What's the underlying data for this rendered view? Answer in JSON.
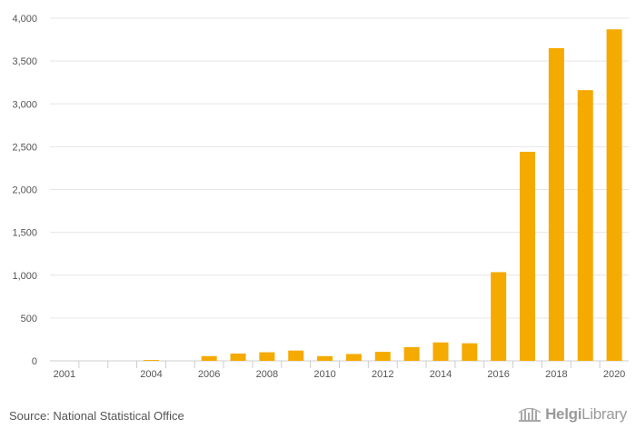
{
  "chart_data": {
    "type": "bar",
    "title": "",
    "xlabel": "",
    "ylabel": "",
    "ylim": [
      0,
      4000
    ],
    "yticks": [
      0,
      500,
      1000,
      1500,
      2000,
      2500,
      3000,
      3500,
      4000
    ],
    "ytick_labels": [
      "0",
      "500",
      "1,000",
      "1,500",
      "2,000",
      "2,500",
      "3,000",
      "3,500",
      "4,000"
    ],
    "categories": [
      "2001",
      "2002",
      "2003",
      "2004",
      "2005",
      "2006",
      "2007",
      "2008",
      "2009",
      "2010",
      "2011",
      "2012",
      "2013",
      "2014",
      "2015",
      "2016",
      "2017",
      "2018",
      "2019",
      "2020"
    ],
    "values": [
      0,
      0,
      0,
      10,
      0,
      55,
      85,
      100,
      120,
      55,
      80,
      105,
      160,
      215,
      205,
      1035,
      2440,
      3650,
      3160,
      3870
    ],
    "xtick_labels": [
      "2001",
      "2004",
      "2006",
      "2008",
      "2010",
      "2012",
      "2014",
      "2016",
      "2018",
      "2020"
    ],
    "bar_color": "#f5aa00",
    "grid": true
  },
  "footer": {
    "source": "Source: National Statistical Office",
    "brand_bold": "Helgi",
    "brand_light": "Library"
  }
}
